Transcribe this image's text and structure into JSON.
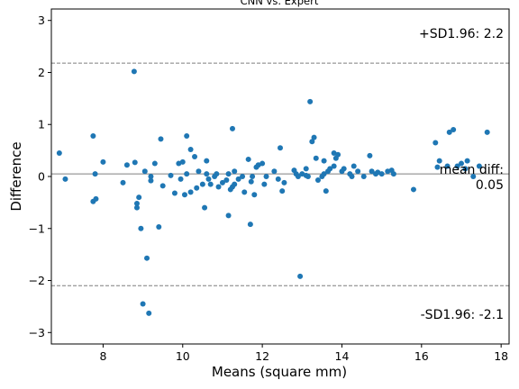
{
  "chart_data": {
    "type": "scatter",
    "title": "CNN vs. Expert",
    "xlabel": "Means (square mm)",
    "ylabel": "Difference",
    "xlim": [
      6.7,
      18.2
    ],
    "ylim": [
      -3.22,
      3.22
    ],
    "xticks": [
      "8",
      "10",
      "12",
      "14",
      "16",
      "18"
    ],
    "xtick_values": [
      8,
      10,
      12,
      14,
      16,
      18
    ],
    "yticks": [
      "3",
      "2",
      "1",
      "0",
      "−1",
      "−2",
      "−3"
    ],
    "ytick_values": [
      3,
      2,
      1,
      0,
      -1,
      -2,
      -3
    ],
    "grid": false,
    "point_color": "#1f77b4",
    "mean_diff": 0.05,
    "upper_limit": 2.18,
    "lower_limit": -2.1,
    "annotations": {
      "upper": "+SD1.96: 2.2",
      "mean_line1": "mean diff:",
      "mean_line2": "0.05",
      "lower": "-SD1.96: -2.1"
    },
    "x": [
      6.9,
      7.05,
      7.75,
      7.8,
      7.75,
      7.82,
      8.0,
      8.5,
      8.6,
      8.78,
      8.8,
      8.85,
      8.85,
      8.9,
      8.95,
      9.0,
      9.05,
      9.1,
      9.15,
      9.2,
      9.2,
      9.3,
      9.4,
      9.45,
      9.5,
      9.7,
      9.8,
      9.9,
      9.95,
      10.0,
      10.05,
      10.1,
      10.1,
      10.2,
      10.2,
      10.3,
      10.35,
      10.4,
      10.5,
      10.55,
      10.6,
      10.6,
      10.65,
      10.7,
      10.8,
      10.85,
      10.9,
      11.0,
      11.1,
      11.15,
      11.15,
      11.2,
      11.25,
      11.25,
      11.3,
      11.3,
      11.4,
      11.5,
      11.55,
      11.65,
      11.7,
      11.72,
      11.75,
      11.8,
      11.85,
      11.9,
      12.0,
      12.05,
      12.1,
      12.3,
      12.4,
      12.45,
      12.5,
      12.55,
      12.8,
      12.85,
      12.9,
      12.95,
      13.0,
      13.1,
      13.1,
      13.15,
      13.2,
      13.25,
      13.3,
      13.35,
      13.4,
      13.5,
      13.55,
      13.55,
      13.6,
      13.65,
      13.7,
      13.8,
      13.8,
      13.85,
      13.9,
      14.0,
      14.05,
      14.2,
      14.25,
      14.3,
      14.4,
      14.55,
      14.7,
      14.75,
      14.85,
      14.9,
      15.0,
      15.15,
      15.25,
      15.3,
      15.8,
      16.35,
      16.4,
      16.45,
      16.65,
      16.7,
      16.8,
      16.9,
      17.0,
      17.1,
      17.15,
      17.3,
      17.45,
      17.65
    ],
    "y": [
      0.45,
      -0.05,
      0.78,
      0.05,
      -0.48,
      -0.43,
      0.28,
      -0.12,
      0.22,
      2.02,
      0.27,
      -0.6,
      -0.52,
      -0.4,
      -1.0,
      -2.45,
      0.1,
      -1.57,
      -2.63,
      0.0,
      -0.08,
      0.25,
      -0.97,
      0.72,
      -0.18,
      0.02,
      -0.32,
      0.25,
      -0.05,
      0.28,
      -0.35,
      0.78,
      0.05,
      0.52,
      -0.3,
      0.38,
      -0.22,
      0.1,
      -0.15,
      -0.6,
      0.3,
      0.05,
      -0.05,
      -0.15,
      0.0,
      0.05,
      -0.2,
      -0.12,
      -0.07,
      -0.75,
      0.05,
      -0.25,
      0.92,
      -0.2,
      0.1,
      -0.15,
      -0.05,
      0.0,
      -0.3,
      0.33,
      -0.92,
      -0.1,
      0.0,
      -0.35,
      0.18,
      0.22,
      0.25,
      -0.15,
      0.0,
      0.1,
      -0.05,
      0.55,
      -0.28,
      -0.12,
      0.12,
      0.05,
      0.0,
      -1.92,
      0.05,
      0.15,
      0.02,
      0.0,
      1.44,
      0.67,
      0.75,
      0.35,
      -0.07,
      0.0,
      0.05,
      0.3,
      -0.28,
      0.1,
      0.15,
      0.2,
      0.45,
      0.35,
      0.42,
      0.1,
      0.15,
      0.05,
      0.0,
      0.2,
      0.1,
      0.0,
      0.4,
      0.1,
      0.05,
      0.08,
      0.05,
      0.1,
      0.12,
      0.05,
      -0.25,
      0.65,
      0.18,
      0.3,
      0.2,
      0.85,
      0.9,
      0.2,
      0.25,
      0.15,
      0.3,
      0.0,
      0.2,
      0.85
    ]
  }
}
